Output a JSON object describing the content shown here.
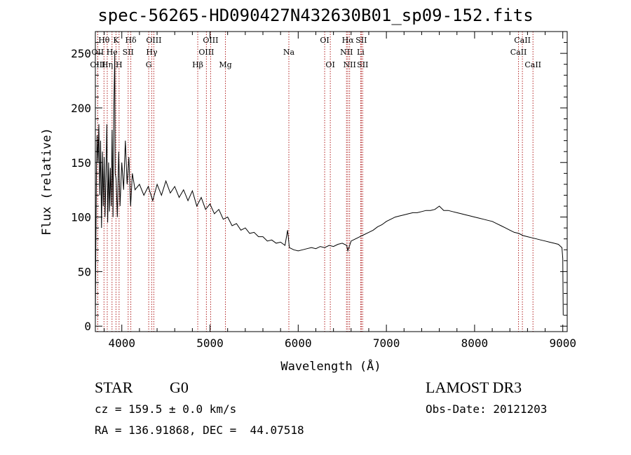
{
  "title": "spec-56265-HD090427N432630B01_sp09-152.fits",
  "info": {
    "class_label": "STAR",
    "subclass_label": "G0",
    "survey": "LAMOST DR3",
    "cz": "cz = 159.5 ± 0.0 km/s",
    "obs_date": "Obs-Date: 20121203",
    "radec": "RA = 136.91868, DEC =  44.07518"
  },
  "colors": {
    "line_marker": "#b22222",
    "spectrum": "#000000",
    "axes": "#000000"
  },
  "chart_data": {
    "type": "line",
    "xlabel": "Wavelength (Å)",
    "ylabel": "Flux (relative)",
    "xlim": [
      3700,
      9050
    ],
    "ylim": [
      -5,
      270
    ],
    "xticks": [
      4000,
      5000,
      6000,
      7000,
      8000,
      9000
    ],
    "yticks": [
      0,
      50,
      100,
      150,
      200,
      250
    ],
    "series": [
      {
        "points": [
          [
            3700,
            5
          ],
          [
            3705,
            65
          ],
          [
            3712,
            140
          ],
          [
            3720,
            175
          ],
          [
            3730,
            150
          ],
          [
            3740,
            185
          ],
          [
            3750,
            120
          ],
          [
            3760,
            170
          ],
          [
            3770,
            90
          ],
          [
            3780,
            160
          ],
          [
            3790,
            110
          ],
          [
            3800,
            155
          ],
          [
            3810,
            100
          ],
          [
            3820,
            140
          ],
          [
            3830,
            185
          ],
          [
            3840,
            95
          ],
          [
            3850,
            150
          ],
          [
            3860,
            105
          ],
          [
            3870,
            145
          ],
          [
            3880,
            110
          ],
          [
            3890,
            180
          ],
          [
            3900,
            100
          ],
          [
            3910,
            200
          ],
          [
            3920,
            250
          ],
          [
            3925,
            140
          ],
          [
            3935,
            135
          ],
          [
            3950,
            100
          ],
          [
            3965,
            160
          ],
          [
            3980,
            110
          ],
          [
            4000,
            150
          ],
          [
            4020,
            125
          ],
          [
            4040,
            170
          ],
          [
            4060,
            130
          ],
          [
            4080,
            155
          ],
          [
            4100,
            110
          ],
          [
            4120,
            140
          ],
          [
            4150,
            125
          ],
          [
            4200,
            130
          ],
          [
            4250,
            120
          ],
          [
            4300,
            128
          ],
          [
            4350,
            115
          ],
          [
            4400,
            130
          ],
          [
            4450,
            120
          ],
          [
            4500,
            133
          ],
          [
            4550,
            122
          ],
          [
            4600,
            128
          ],
          [
            4650,
            118
          ],
          [
            4700,
            125
          ],
          [
            4750,
            115
          ],
          [
            4800,
            124
          ],
          [
            4850,
            110
          ],
          [
            4900,
            118
          ],
          [
            4950,
            107
          ],
          [
            5000,
            112
          ],
          [
            5050,
            103
          ],
          [
            5100,
            107
          ],
          [
            5150,
            98
          ],
          [
            5200,
            100
          ],
          [
            5250,
            92
          ],
          [
            5300,
            94
          ],
          [
            5350,
            88
          ],
          [
            5400,
            90
          ],
          [
            5450,
            85
          ],
          [
            5500,
            86
          ],
          [
            5550,
            82
          ],
          [
            5600,
            82
          ],
          [
            5650,
            78
          ],
          [
            5700,
            79
          ],
          [
            5750,
            76
          ],
          [
            5800,
            77
          ],
          [
            5850,
            74
          ],
          [
            5880,
            88
          ],
          [
            5900,
            72
          ],
          [
            5950,
            70
          ],
          [
            6000,
            69
          ],
          [
            6050,
            70
          ],
          [
            6100,
            71
          ],
          [
            6150,
            72
          ],
          [
            6200,
            71
          ],
          [
            6250,
            73
          ],
          [
            6300,
            72
          ],
          [
            6350,
            74
          ],
          [
            6400,
            73
          ],
          [
            6450,
            75
          ],
          [
            6500,
            76
          ],
          [
            6550,
            74
          ],
          [
            6563,
            69
          ],
          [
            6600,
            78
          ],
          [
            6650,
            80
          ],
          [
            6700,
            82
          ],
          [
            6750,
            84
          ],
          [
            6800,
            86
          ],
          [
            6850,
            88
          ],
          [
            6900,
            91
          ],
          [
            6950,
            93
          ],
          [
            7000,
            96
          ],
          [
            7050,
            98
          ],
          [
            7100,
            100
          ],
          [
            7150,
            101
          ],
          [
            7200,
            102
          ],
          [
            7250,
            103
          ],
          [
            7300,
            104
          ],
          [
            7350,
            104
          ],
          [
            7400,
            105
          ],
          [
            7450,
            106
          ],
          [
            7500,
            106
          ],
          [
            7550,
            107
          ],
          [
            7600,
            110
          ],
          [
            7650,
            106
          ],
          [
            7700,
            106
          ],
          [
            7750,
            105
          ],
          [
            7800,
            104
          ],
          [
            7850,
            103
          ],
          [
            7900,
            102
          ],
          [
            7950,
            101
          ],
          [
            8000,
            100
          ],
          [
            8050,
            99
          ],
          [
            8100,
            98
          ],
          [
            8150,
            97
          ],
          [
            8200,
            96
          ],
          [
            8250,
            94
          ],
          [
            8300,
            92
          ],
          [
            8350,
            90
          ],
          [
            8400,
            88
          ],
          [
            8450,
            86
          ],
          [
            8500,
            85
          ],
          [
            8550,
            83
          ],
          [
            8600,
            82
          ],
          [
            8650,
            81
          ],
          [
            8700,
            80
          ],
          [
            8750,
            79
          ],
          [
            8800,
            78
          ],
          [
            8850,
            77
          ],
          [
            8900,
            76
          ],
          [
            8950,
            75
          ],
          [
            8990,
            72
          ],
          [
            9000,
            62
          ],
          [
            9005,
            10
          ]
        ]
      }
    ],
    "lines": [
      {
        "name": "Hθ",
        "wave": 3798,
        "row": 0
      },
      {
        "name": "OII",
        "wave": 3727,
        "row": 1
      },
      {
        "name": "OIII",
        "wave": 3727,
        "row": 2
      },
      {
        "name": "K",
        "wave": 3934,
        "row": 0
      },
      {
        "name": "He",
        "wave": 3889,
        "row": 1
      },
      {
        "name": "Hη",
        "wave": 3835,
        "row": 2
      },
      {
        "name": "H",
        "wave": 3969,
        "row": 2
      },
      {
        "name": "SII",
        "wave": 4072,
        "row": 1
      },
      {
        "name": "Hδ",
        "wave": 4102,
        "row": 0
      },
      {
        "name": "OIII",
        "wave": 4363,
        "row": 0
      },
      {
        "name": "Hγ",
        "wave": 4340,
        "row": 1
      },
      {
        "name": "G",
        "wave": 4305,
        "row": 2
      },
      {
        "name": "Hβ",
        "wave": 4861,
        "row": 2
      },
      {
        "name": "OIII",
        "wave": 5007,
        "row": 0
      },
      {
        "name": "OIII",
        "wave": 4959,
        "row": 1
      },
      {
        "name": "Mg",
        "wave": 5175,
        "row": 2
      },
      {
        "name": "Na",
        "wave": 5894,
        "row": 1
      },
      {
        "name": "OI",
        "wave": 6300,
        "row": 0
      },
      {
        "name": "OI",
        "wave": 6364,
        "row": 2
      },
      {
        "name": "Hα",
        "wave": 6563,
        "row": 0
      },
      {
        "name": "NII",
        "wave": 6548,
        "row": 1
      },
      {
        "name": "NII",
        "wave": 6583,
        "row": 2
      },
      {
        "name": "SII",
        "wave": 6716,
        "row": 0
      },
      {
        "name": "Li",
        "wave": 6708,
        "row": 1
      },
      {
        "name": "SII",
        "wave": 6731,
        "row": 2
      },
      {
        "name": "CaII",
        "wave": 8542,
        "row": 0
      },
      {
        "name": "CaII",
        "wave": 8498,
        "row": 1
      },
      {
        "name": "CaII",
        "wave": 8662,
        "row": 2
      }
    ]
  }
}
